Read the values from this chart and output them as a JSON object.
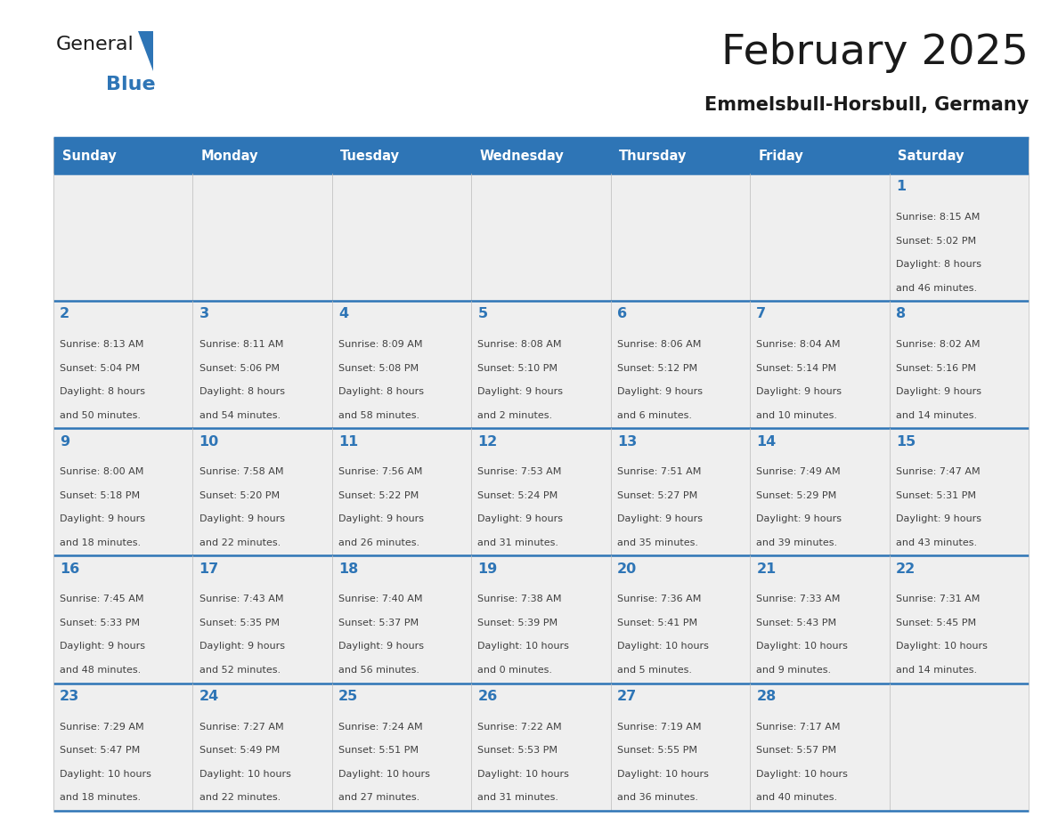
{
  "title": "February 2025",
  "subtitle": "Emmelsbull-Horsbull, Germany",
  "header_color": "#2E75B6",
  "header_text_color": "#FFFFFF",
  "cell_bg_color": "#EFEFEF",
  "day_number_color": "#2E75B6",
  "text_color": "#404040",
  "border_color": "#2E75B6",
  "days_of_week": [
    "Sunday",
    "Monday",
    "Tuesday",
    "Wednesday",
    "Thursday",
    "Friday",
    "Saturday"
  ],
  "weeks": [
    [
      {
        "day": "",
        "info": ""
      },
      {
        "day": "",
        "info": ""
      },
      {
        "day": "",
        "info": ""
      },
      {
        "day": "",
        "info": ""
      },
      {
        "day": "",
        "info": ""
      },
      {
        "day": "",
        "info": ""
      },
      {
        "day": "1",
        "info": "Sunrise: 8:15 AM\nSunset: 5:02 PM\nDaylight: 8 hours\nand 46 minutes."
      }
    ],
    [
      {
        "day": "2",
        "info": "Sunrise: 8:13 AM\nSunset: 5:04 PM\nDaylight: 8 hours\nand 50 minutes."
      },
      {
        "day": "3",
        "info": "Sunrise: 8:11 AM\nSunset: 5:06 PM\nDaylight: 8 hours\nand 54 minutes."
      },
      {
        "day": "4",
        "info": "Sunrise: 8:09 AM\nSunset: 5:08 PM\nDaylight: 8 hours\nand 58 minutes."
      },
      {
        "day": "5",
        "info": "Sunrise: 8:08 AM\nSunset: 5:10 PM\nDaylight: 9 hours\nand 2 minutes."
      },
      {
        "day": "6",
        "info": "Sunrise: 8:06 AM\nSunset: 5:12 PM\nDaylight: 9 hours\nand 6 minutes."
      },
      {
        "day": "7",
        "info": "Sunrise: 8:04 AM\nSunset: 5:14 PM\nDaylight: 9 hours\nand 10 minutes."
      },
      {
        "day": "8",
        "info": "Sunrise: 8:02 AM\nSunset: 5:16 PM\nDaylight: 9 hours\nand 14 minutes."
      }
    ],
    [
      {
        "day": "9",
        "info": "Sunrise: 8:00 AM\nSunset: 5:18 PM\nDaylight: 9 hours\nand 18 minutes."
      },
      {
        "day": "10",
        "info": "Sunrise: 7:58 AM\nSunset: 5:20 PM\nDaylight: 9 hours\nand 22 minutes."
      },
      {
        "day": "11",
        "info": "Sunrise: 7:56 AM\nSunset: 5:22 PM\nDaylight: 9 hours\nand 26 minutes."
      },
      {
        "day": "12",
        "info": "Sunrise: 7:53 AM\nSunset: 5:24 PM\nDaylight: 9 hours\nand 31 minutes."
      },
      {
        "day": "13",
        "info": "Sunrise: 7:51 AM\nSunset: 5:27 PM\nDaylight: 9 hours\nand 35 minutes."
      },
      {
        "day": "14",
        "info": "Sunrise: 7:49 AM\nSunset: 5:29 PM\nDaylight: 9 hours\nand 39 minutes."
      },
      {
        "day": "15",
        "info": "Sunrise: 7:47 AM\nSunset: 5:31 PM\nDaylight: 9 hours\nand 43 minutes."
      }
    ],
    [
      {
        "day": "16",
        "info": "Sunrise: 7:45 AM\nSunset: 5:33 PM\nDaylight: 9 hours\nand 48 minutes."
      },
      {
        "day": "17",
        "info": "Sunrise: 7:43 AM\nSunset: 5:35 PM\nDaylight: 9 hours\nand 52 minutes."
      },
      {
        "day": "18",
        "info": "Sunrise: 7:40 AM\nSunset: 5:37 PM\nDaylight: 9 hours\nand 56 minutes."
      },
      {
        "day": "19",
        "info": "Sunrise: 7:38 AM\nSunset: 5:39 PM\nDaylight: 10 hours\nand 0 minutes."
      },
      {
        "day": "20",
        "info": "Sunrise: 7:36 AM\nSunset: 5:41 PM\nDaylight: 10 hours\nand 5 minutes."
      },
      {
        "day": "21",
        "info": "Sunrise: 7:33 AM\nSunset: 5:43 PM\nDaylight: 10 hours\nand 9 minutes."
      },
      {
        "day": "22",
        "info": "Sunrise: 7:31 AM\nSunset: 5:45 PM\nDaylight: 10 hours\nand 14 minutes."
      }
    ],
    [
      {
        "day": "23",
        "info": "Sunrise: 7:29 AM\nSunset: 5:47 PM\nDaylight: 10 hours\nand 18 minutes."
      },
      {
        "day": "24",
        "info": "Sunrise: 7:27 AM\nSunset: 5:49 PM\nDaylight: 10 hours\nand 22 minutes."
      },
      {
        "day": "25",
        "info": "Sunrise: 7:24 AM\nSunset: 5:51 PM\nDaylight: 10 hours\nand 27 minutes."
      },
      {
        "day": "26",
        "info": "Sunrise: 7:22 AM\nSunset: 5:53 PM\nDaylight: 10 hours\nand 31 minutes."
      },
      {
        "day": "27",
        "info": "Sunrise: 7:19 AM\nSunset: 5:55 PM\nDaylight: 10 hours\nand 36 minutes."
      },
      {
        "day": "28",
        "info": "Sunrise: 7:17 AM\nSunset: 5:57 PM\nDaylight: 10 hours\nand 40 minutes."
      },
      {
        "day": "",
        "info": ""
      }
    ]
  ]
}
